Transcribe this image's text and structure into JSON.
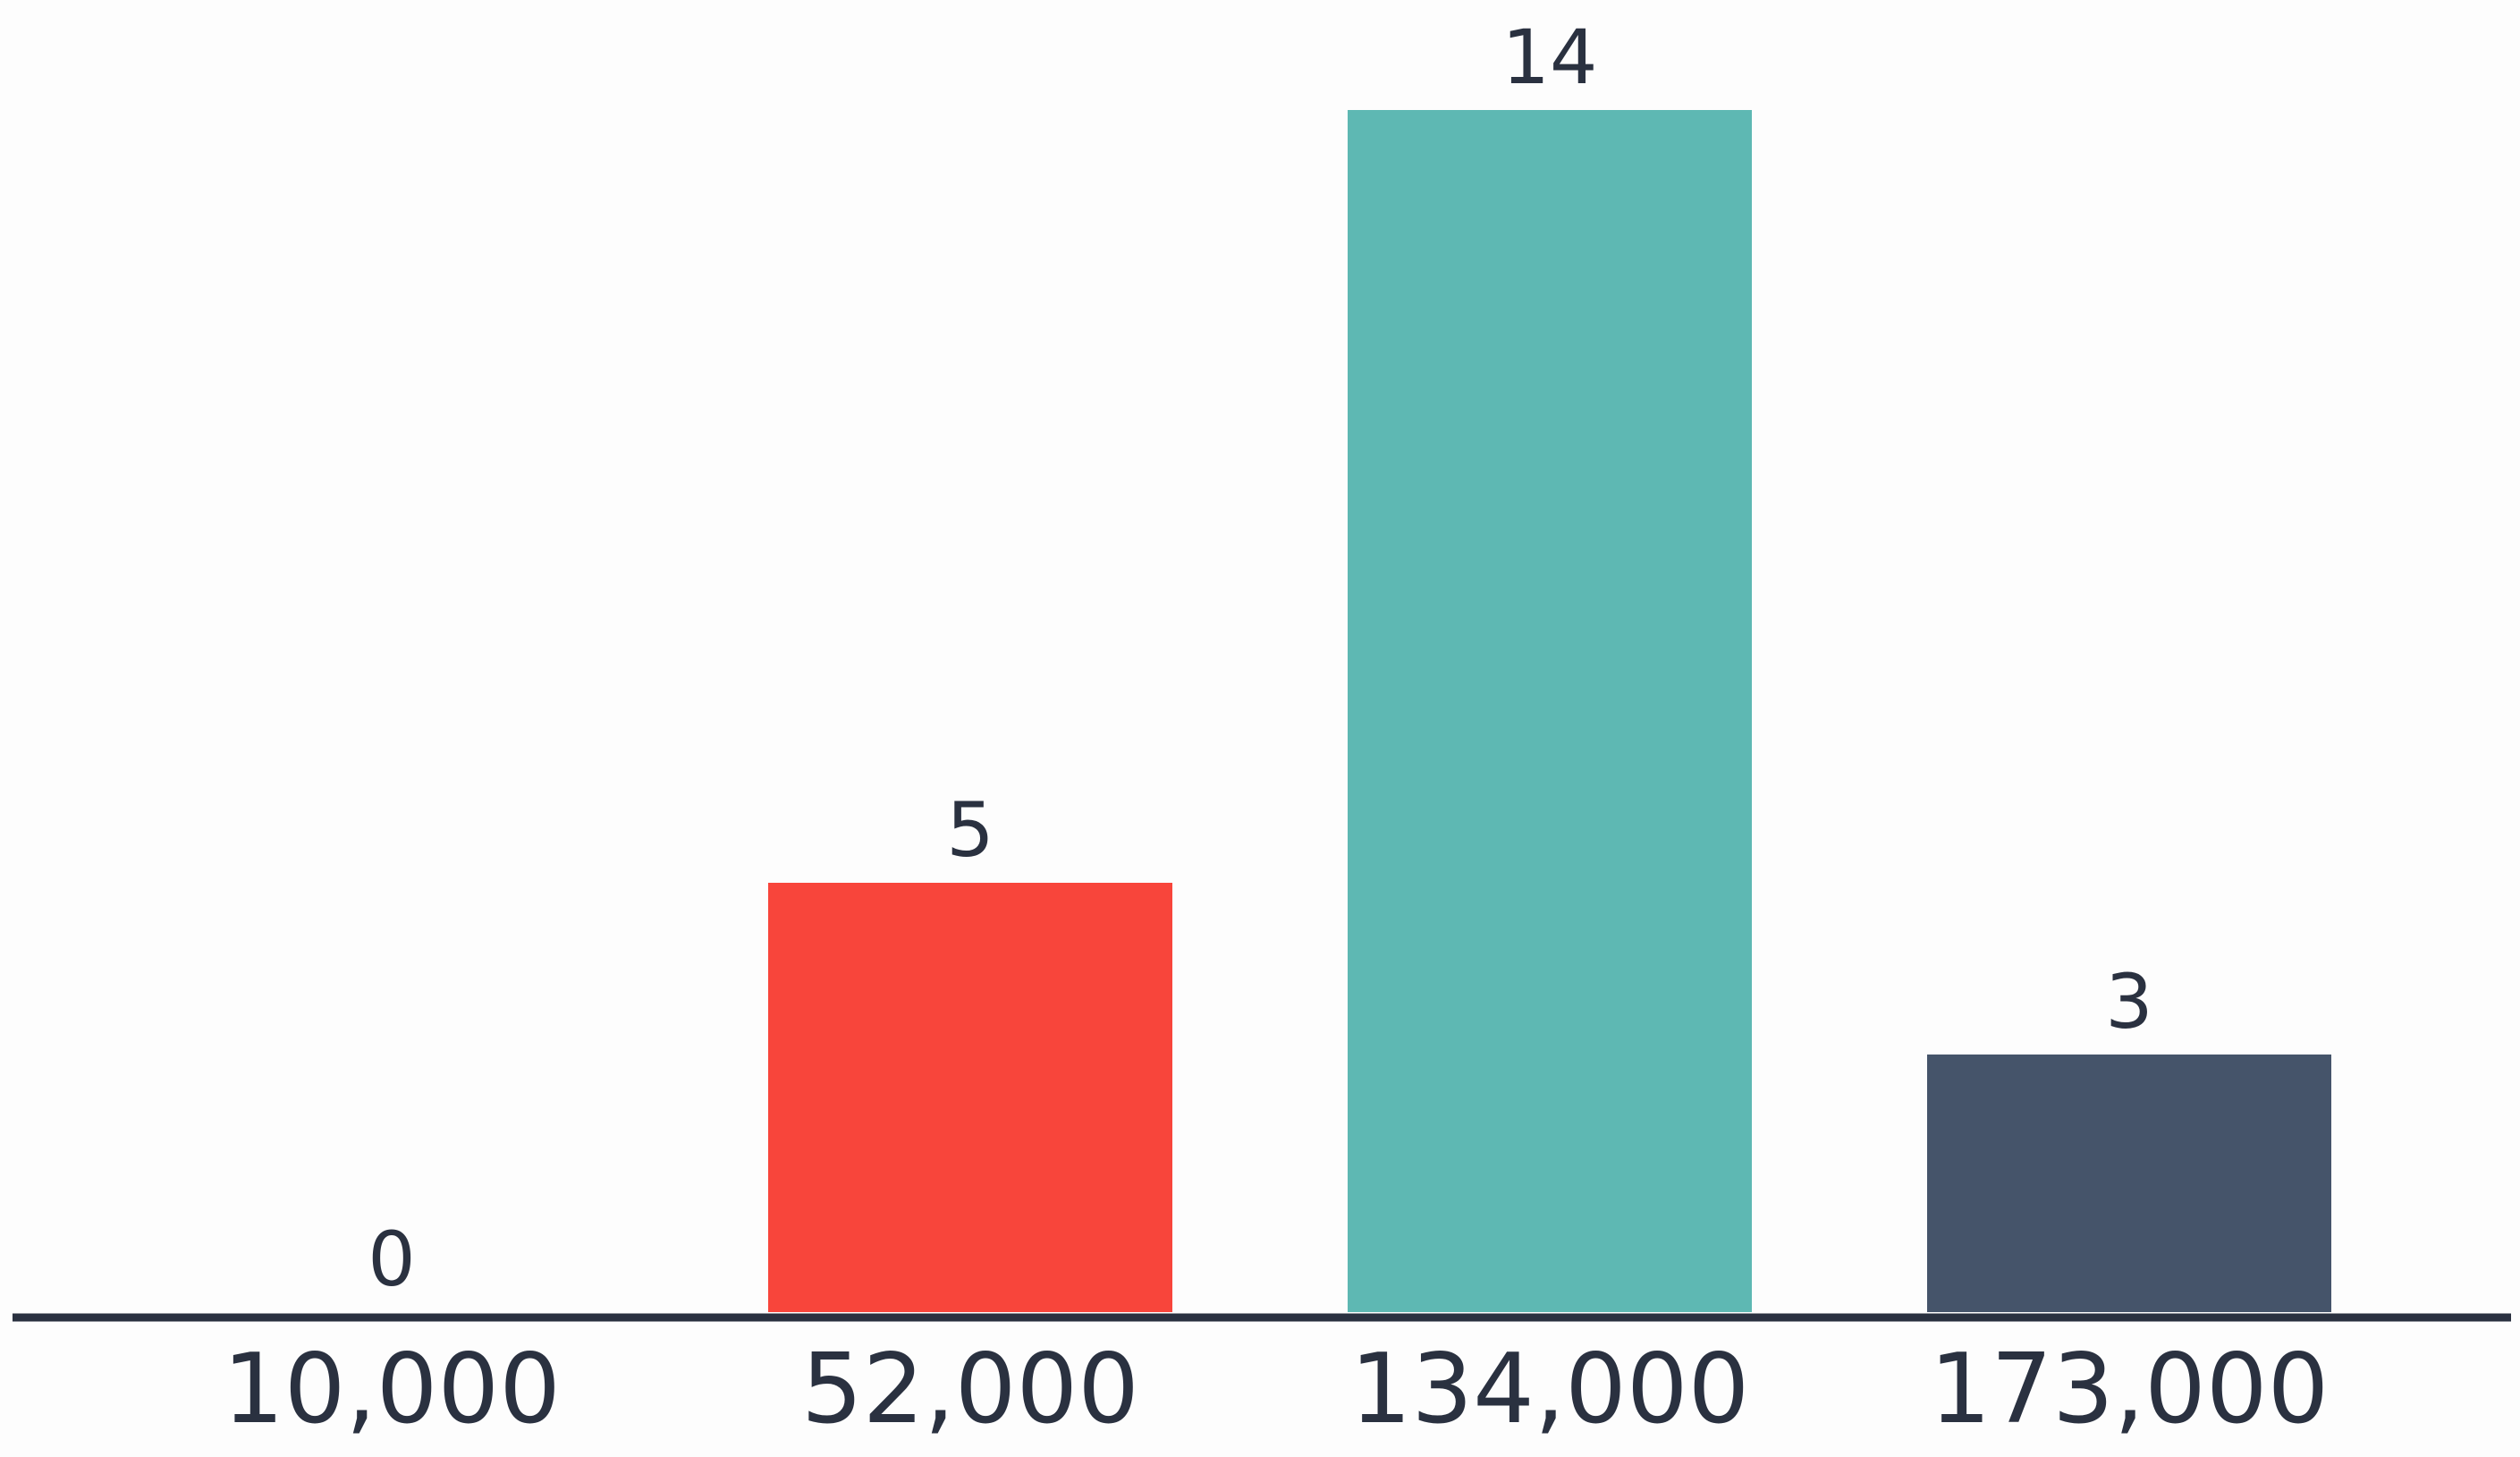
{
  "chart_data": {
    "type": "bar",
    "title": "",
    "xlabel": "",
    "ylabel": "",
    "categories": [
      "10,000",
      "52,000",
      "134,000",
      "173,000"
    ],
    "values": [
      0,
      5,
      14,
      3
    ],
    "ylim": [
      0,
      14
    ],
    "grid": false,
    "legend": "none",
    "colors": [
      "#f8453b",
      "#f8453b",
      "#5eb8b3",
      "#45546a"
    ],
    "axis_color": "#2a3140"
  }
}
